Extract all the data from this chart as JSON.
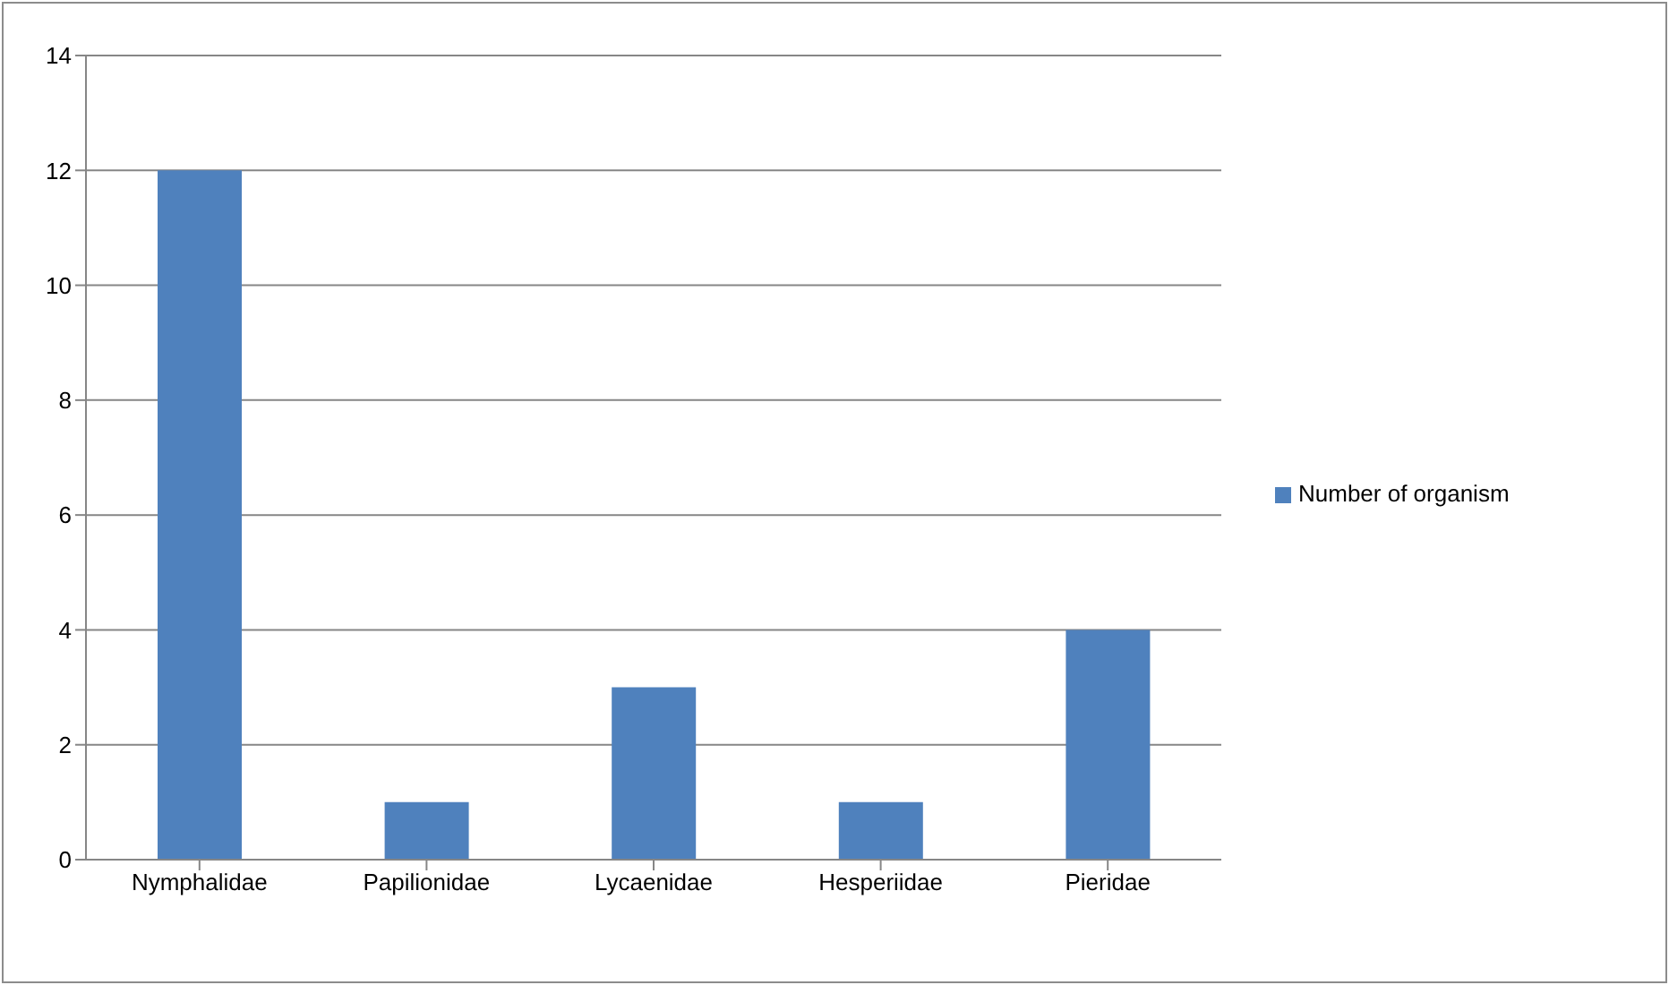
{
  "chart_data": {
    "type": "bar",
    "categories": [
      "Nymphalidae",
      "Papilionidae",
      "Lycaenidae",
      "Hesperiidae",
      "Pieridae"
    ],
    "series": [
      {
        "name": "Number of organism",
        "color": "#4f81bd",
        "values": [
          12,
          1,
          3,
          1,
          4
        ]
      }
    ],
    "ylim": [
      0,
      14
    ],
    "yticks": [
      0,
      2,
      4,
      6,
      8,
      10,
      12,
      14
    ],
    "grid": "y",
    "legend": "right"
  }
}
